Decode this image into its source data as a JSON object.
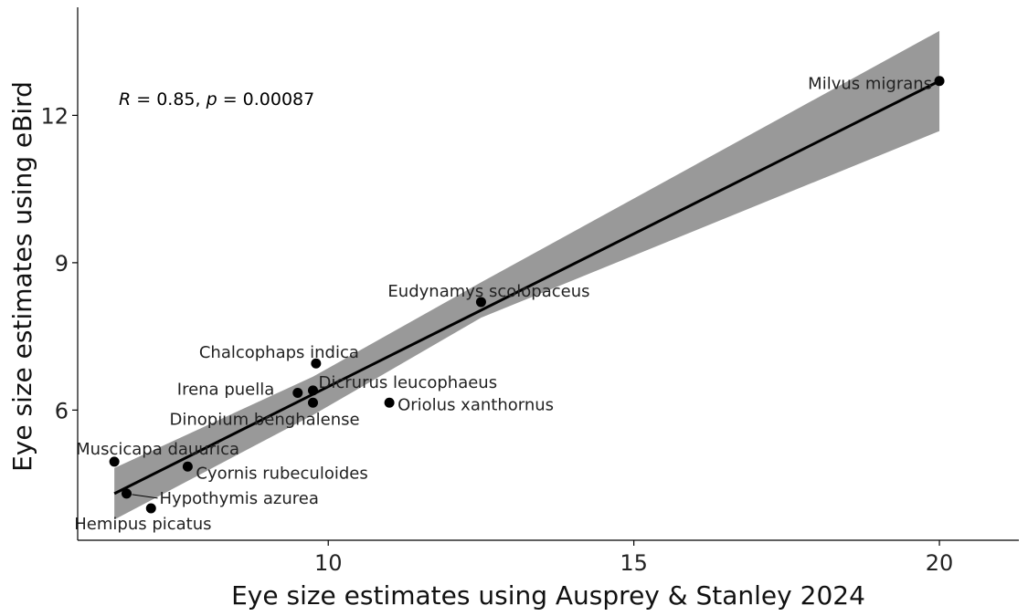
{
  "chart_data": {
    "type": "scatter",
    "xlabel": "Eye size estimates using Ausprey & Stanley 2024",
    "ylabel": "Eye size estimates using eBird",
    "xlim": [
      5.9,
      21.3
    ],
    "ylim": [
      3.35,
      14.2
    ],
    "x_ticks": [
      10,
      15,
      20
    ],
    "y_ticks": [
      6,
      9,
      12
    ],
    "grid": false,
    "annotation": {
      "r_label": "R",
      "r_text": " = 0.85, ",
      "p_label": "p",
      "p_text": " = 0.00087"
    },
    "points": [
      {
        "label": "Milvus migrans",
        "x": 20.0,
        "y": 12.7
      },
      {
        "label": "Eudynamys scolopaceus",
        "x": 12.5,
        "y": 8.2
      },
      {
        "label": "Chalcophaps indica",
        "x": 9.8,
        "y": 6.95
      },
      {
        "label": "Irena puella",
        "x": 9.5,
        "y": 6.35
      },
      {
        "label": "Dicrurus leucophaeus",
        "x": 9.75,
        "y": 6.4
      },
      {
        "label": "Dinopium benghalense",
        "x": 9.75,
        "y": 6.15
      },
      {
        "label": "Oriolus xanthornus",
        "x": 11.0,
        "y": 6.15
      },
      {
        "label": "Muscicapa dauurica",
        "x": 6.5,
        "y": 4.95
      },
      {
        "label": "Cyornis rubeculoides",
        "x": 7.7,
        "y": 4.85
      },
      {
        "label": "Hypothymis azurea",
        "x": 6.7,
        "y": 4.3
      },
      {
        "label": "Hemipus picatus",
        "x": 7.1,
        "y": 4.0
      }
    ],
    "fit": {
      "x0": 6.5,
      "y0": 4.3,
      "x1": 20.0,
      "y1": 12.7,
      "band_x": [
        6.5,
        9.75,
        12.5,
        20.0
      ],
      "band_upper": [
        4.82,
        6.68,
        8.6,
        13.72
      ],
      "band_lower": [
        3.77,
        5.9,
        7.88,
        11.68
      ]
    },
    "colors": {
      "band": "#999999",
      "line": "#000000",
      "point": "#000000",
      "axis": "#000000"
    }
  }
}
